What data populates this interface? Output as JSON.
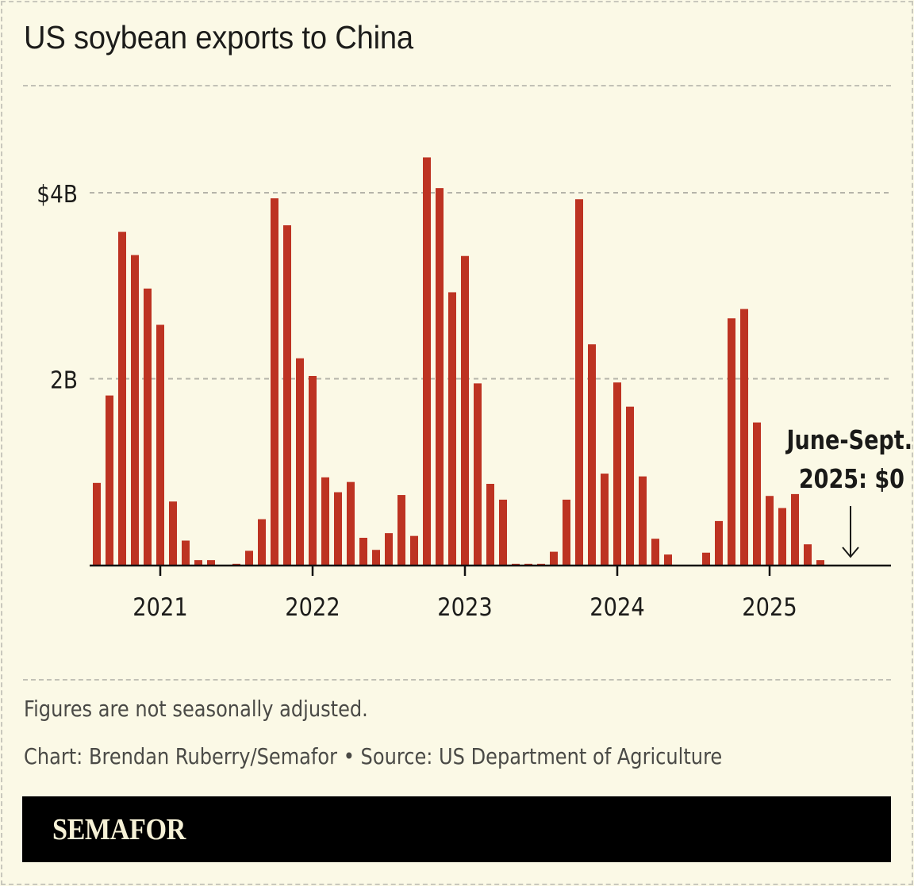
{
  "header": {
    "title": "US soybean exports to China"
  },
  "chart_data": {
    "type": "bar",
    "title": "US soybean exports to China",
    "xlabel": "",
    "ylabel": "",
    "units": "USD billions",
    "ylim": [
      0,
      4.5
    ],
    "grid": true,
    "y_ticks": [
      {
        "value": 4,
        "label": "$4B"
      },
      {
        "value": 2,
        "label": "2B"
      }
    ],
    "x_ticks": [
      {
        "month": "2021-01",
        "label": "2021"
      },
      {
        "month": "2022-01",
        "label": "2022"
      },
      {
        "month": "2023-01",
        "label": "2023"
      },
      {
        "month": "2024-01",
        "label": "2024"
      },
      {
        "month": "2025-01",
        "label": "2025"
      }
    ],
    "categories": [
      "2020-08",
      "2020-09",
      "2020-10",
      "2020-11",
      "2020-12",
      "2021-01",
      "2021-02",
      "2021-03",
      "2021-04",
      "2021-05",
      "2021-06",
      "2021-07",
      "2021-08",
      "2021-09",
      "2021-10",
      "2021-11",
      "2021-12",
      "2022-01",
      "2022-02",
      "2022-03",
      "2022-04",
      "2022-05",
      "2022-06",
      "2022-07",
      "2022-08",
      "2022-09",
      "2022-10",
      "2022-11",
      "2022-12",
      "2023-01",
      "2023-02",
      "2023-03",
      "2023-04",
      "2023-05",
      "2023-06",
      "2023-07",
      "2023-08",
      "2023-09",
      "2023-10",
      "2023-11",
      "2023-12",
      "2024-01",
      "2024-02",
      "2024-03",
      "2024-04",
      "2024-05",
      "2024-06",
      "2024-07",
      "2024-08",
      "2024-09",
      "2024-10",
      "2024-11",
      "2024-12",
      "2025-01",
      "2025-02",
      "2025-03",
      "2025-04",
      "2025-05",
      "2025-06",
      "2025-07",
      "2025-08",
      "2025-09"
    ],
    "values": [
      0.88,
      1.82,
      3.58,
      3.33,
      2.97,
      2.58,
      0.68,
      0.26,
      0.05,
      0.05,
      0.0,
      0.01,
      0.15,
      0.49,
      3.94,
      3.65,
      2.22,
      2.03,
      0.94,
      0.78,
      0.89,
      0.29,
      0.16,
      0.34,
      0.75,
      0.31,
      4.38,
      4.05,
      2.93,
      3.32,
      1.95,
      0.87,
      0.7,
      0.01,
      0.01,
      0.01,
      0.14,
      0.7,
      3.93,
      2.37,
      0.98,
      1.96,
      1.7,
      0.95,
      0.28,
      0.11,
      0.0,
      0.0,
      0.13,
      0.47,
      2.65,
      2.75,
      1.53,
      0.74,
      0.61,
      0.76,
      0.22,
      0.05,
      0.0,
      0.0,
      0.0,
      0.0
    ],
    "bar_color": "#bd3322",
    "annotation": {
      "lines": [
        "June-Sept.",
        "2025: $0"
      ],
      "points_to": "2025-07"
    }
  },
  "footer": {
    "note": "Figures are not seasonally adjusted.",
    "credit": "Chart: Brendan Ruberry/Semafor • Source: US Department of Agriculture",
    "logo": "SEMAFOR"
  },
  "colors": {
    "background": "#fbf9e6",
    "bar": "#bd3322",
    "text": "#1c1c1a",
    "grid": "#b5b4aa",
    "footer_bg": "#000000",
    "logo": "#f6f1d6"
  }
}
